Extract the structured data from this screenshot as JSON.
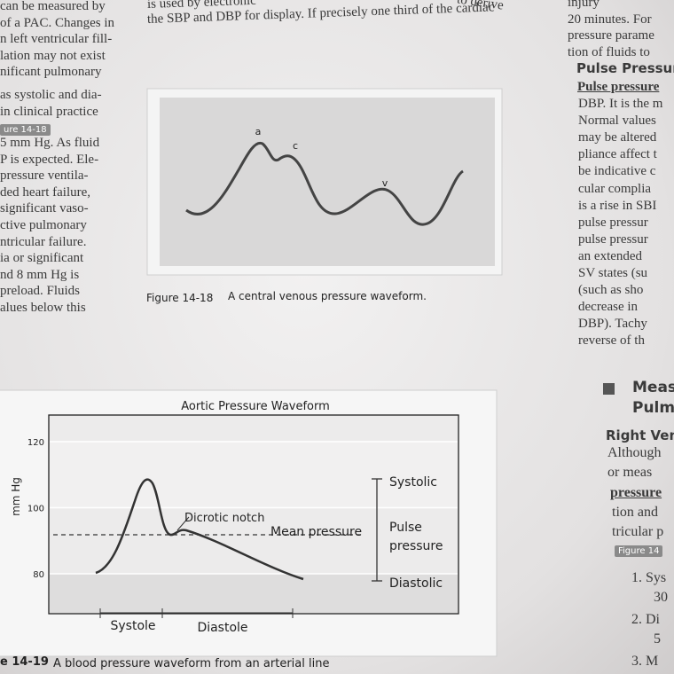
{
  "left_column": [
    [
      "can be measured by",
      "of a PAC. Changes in",
      "n left ventricular fill-",
      "lation may not exist",
      "nificant pulmonary"
    ],
    [
      "as systolic and dia-",
      "in clinical practice"
    ],
    [
      "5 mm Hg. As fluid",
      "P is expected. Ele-",
      "pressure ventila-",
      "ded heart failure,",
      "significant vaso-",
      "ctive pulmonary",
      "ntricular failure.",
      "ia or significant",
      "nd 8 mm Hg is",
      "preload. Fluids",
      "alues below this"
    ]
  ],
  "left_badge": "ure 14-18",
  "top_text": [
    "is used by electronic",
    "the SBP and DBP for display. If precisely one third of the cardiac"
  ],
  "top_text_right": "to derive",
  "figure_14_18": {
    "labels": {
      "a": "a",
      "c": "c",
      "v": "v"
    },
    "caption_number": "Figure 14-18",
    "caption_text": "A central venous pressure waveform."
  },
  "figure_14_19": {
    "title": "Aortic Pressure Waveform",
    "y_label": "mm Hg",
    "yticks": [
      120,
      100,
      80
    ],
    "labels": {
      "systolic": "Systolic",
      "pulse_pressure": [
        "Pulse",
        "pressure"
      ],
      "diastolic": "Diastolic",
      "dicrotic_notch": "Dicrotic notch",
      "mean_pressure": "Mean pressure",
      "systole": "Systole",
      "diastole": "Diastole"
    },
    "caption_number": "e 14-19",
    "caption_text": "A blood pressure waveform from an arterial line"
  },
  "right_column": {
    "intro": [
      "injury",
      "20 minutes. For",
      "pressure parame",
      "tion of fluids to"
    ],
    "heading_1": "Pulse Pressure",
    "term_1": "Pulse pressure",
    "body_1": [
      "DBP. It is the m",
      "Normal values",
      "may be altered",
      "pliance affect t",
      "be indicative c",
      "cular complia",
      "is a rise in SBI",
      "pulse pressur",
      "pulse pressur",
      "an extended",
      "SV states (su",
      "(such as sho",
      "decrease in",
      "DBP). Tachy",
      "reverse of th"
    ],
    "heading_2": [
      "Meas",
      "Pulm"
    ],
    "subheading": "Right Vent",
    "body_2a": [
      "Although",
      "or meas"
    ],
    "term_2": "pressure",
    "body_2b": [
      "tion and",
      "tricular p"
    ],
    "badge": "Figure 14",
    "list": [
      [
        "1. Sys",
        "30"
      ],
      [
        "2. Di",
        "5"
      ],
      [
        "3. M"
      ]
    ]
  }
}
